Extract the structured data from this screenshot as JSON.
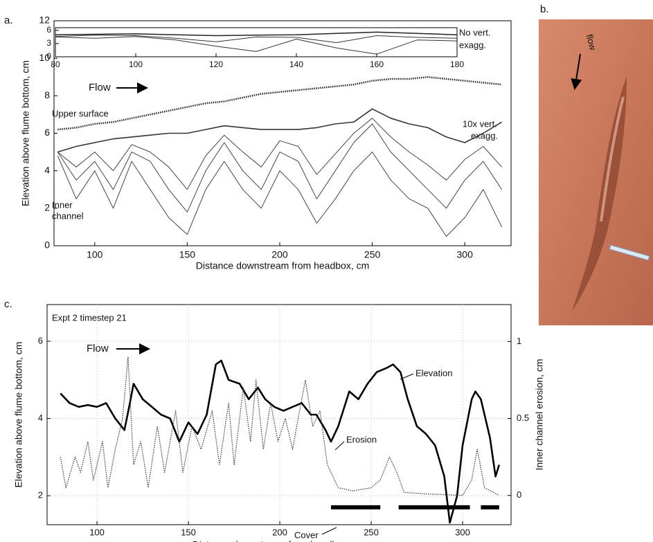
{
  "panel_labels": {
    "a": "a.",
    "b": "b.",
    "c": "c."
  },
  "photo": {
    "label": "flow"
  },
  "chart_data": [
    {
      "type": "line",
      "xlabel": "Distance downstream from headbox, cm",
      "ylabel": "Elevation above flume bottom, cm",
      "xlim": [
        78,
        325
      ],
      "ylim": [
        0,
        12
      ],
      "xticks": [
        100,
        150,
        200,
        250,
        300
      ],
      "yticks": [
        0,
        2,
        4,
        6,
        8,
        10,
        12
      ],
      "grid": false,
      "annotations": {
        "flow": "Flow",
        "upper": "Upper surface",
        "exagg_1": "10x vert.",
        "exagg_2": "exagg.",
        "inner_1": "Inner",
        "inner_2": "channel"
      },
      "x": [
        80,
        90,
        100,
        110,
        120,
        130,
        140,
        150,
        160,
        170,
        180,
        190,
        200,
        210,
        220,
        230,
        240,
        250,
        260,
        270,
        280,
        290,
        300,
        310,
        320
      ],
      "series": [
        {
          "name": "Upper surface",
          "color": "#222",
          "style": "dotted",
          "linewidth": 2.5,
          "values": [
            6.2,
            6.3,
            6.5,
            6.6,
            6.8,
            7.0,
            7.2,
            7.4,
            7.6,
            7.7,
            7.9,
            8.1,
            8.2,
            8.3,
            8.4,
            8.5,
            8.6,
            8.8,
            8.9,
            8.9,
            9.0,
            8.9,
            8.8,
            8.7,
            8.6
          ]
        },
        {
          "color": "#333",
          "style": "solid",
          "linewidth": 1.6,
          "values": [
            5.0,
            5.3,
            5.5,
            5.7,
            5.8,
            5.9,
            6.0,
            6.0,
            6.2,
            6.4,
            6.3,
            6.2,
            6.2,
            6.2,
            6.3,
            6.5,
            6.6,
            7.3,
            6.8,
            6.5,
            6.3,
            5.8,
            5.5,
            6.0,
            6.6
          ]
        },
        {
          "color": "#444",
          "style": "solid",
          "linewidth": 1,
          "values": [
            5.0,
            4.2,
            5.0,
            4.0,
            5.4,
            5.0,
            4.2,
            3.0,
            4.8,
            5.9,
            5.0,
            4.2,
            5.6,
            5.3,
            3.8,
            4.9,
            6.0,
            6.8,
            5.8,
            5.0,
            4.3,
            3.5,
            4.6,
            5.3,
            4.2
          ]
        },
        {
          "color": "#444",
          "style": "solid",
          "linewidth": 1,
          "values": [
            5.0,
            3.5,
            4.5,
            3.0,
            5.0,
            4.5,
            3.0,
            1.8,
            4.0,
            5.5,
            4.0,
            3.0,
            5.0,
            4.5,
            2.5,
            4.0,
            5.5,
            6.5,
            5.0,
            4.0,
            3.0,
            2.0,
            3.5,
            4.5,
            3.0
          ]
        },
        {
          "color": "#444",
          "style": "solid",
          "linewidth": 1,
          "values": [
            4.8,
            2.5,
            4.0,
            2.0,
            4.5,
            3.0,
            1.5,
            0.6,
            3.0,
            4.5,
            3.0,
            2.0,
            4.0,
            3.0,
            1.2,
            2.5,
            4.0,
            5.0,
            3.5,
            2.5,
            2.0,
            0.5,
            1.5,
            3.0,
            1.0
          ]
        }
      ]
    },
    {
      "type": "line",
      "xlim": [
        80,
        180
      ],
      "ylim": [
        0,
        6.6
      ],
      "xticks": [
        80,
        100,
        120,
        140,
        160,
        180
      ],
      "yticks": [
        0,
        3,
        6
      ],
      "grid": false,
      "annotations": {
        "note_1": "No vert.",
        "note_2": "exagg."
      },
      "x": [
        80,
        90,
        100,
        110,
        120,
        130,
        140,
        150,
        160,
        170,
        180
      ],
      "series": [
        {
          "color": "#222",
          "style": "solid",
          "linewidth": 1.5,
          "values": [
            5.0,
            5.1,
            5.2,
            5.0,
            4.8,
            4.9,
            5.0,
            5.3,
            5.6,
            5.3,
            5.0
          ]
        },
        {
          "color": "#333",
          "style": "solid",
          "linewidth": 1,
          "values": [
            4.6,
            4.9,
            4.8,
            4.2,
            3.4,
            4.5,
            4.4,
            3.2,
            4.8,
            4.4,
            4.2
          ]
        },
        {
          "color": "#333",
          "style": "solid",
          "linewidth": 1,
          "values": [
            4.5,
            4.2,
            4.6,
            3.8,
            2.4,
            1.2,
            4.0,
            2.0,
            0.6,
            3.8,
            3.6
          ]
        }
      ]
    },
    {
      "type": "line",
      "subtitle": "Expt 2 timestep 21",
      "xlabel": "Distance downstream from headbox, cm",
      "ylabel": "Elevation above flume bottom, cm",
      "y2label": "Inner channel erosion, cm",
      "xlim": [
        72.7,
        326.5
      ],
      "ylim": [
        1.25,
        6.95
      ],
      "y2lim": [
        -0.19,
        1.24
      ],
      "xticks": [
        100,
        150,
        200,
        250,
        300
      ],
      "yticks": [
        2,
        4,
        6
      ],
      "y2ticks": [
        0,
        0.5,
        1
      ],
      "grid": true,
      "annotations": {
        "flow": "Flow",
        "elevation": "Elevation",
        "erosion": "Erosion"
      },
      "cover": {
        "label": "Cover",
        "level": 1.7,
        "segments": [
          [
            228,
            255
          ],
          [
            265,
            304
          ],
          [
            310,
            320
          ]
        ]
      },
      "series": [
        {
          "name": "Elevation",
          "color": "#000",
          "style": "solid",
          "linewidth": 2.6,
          "x": [
            80,
            85,
            90,
            95,
            100,
            105,
            110,
            115,
            118,
            120,
            125,
            130,
            135,
            140,
            145,
            150,
            155,
            160,
            165,
            168,
            172,
            178,
            183,
            188,
            192,
            197,
            202,
            207,
            212,
            217,
            220,
            225,
            228,
            232,
            238,
            243,
            248,
            253,
            258,
            262,
            266,
            270,
            275,
            280,
            285,
            290,
            293,
            297,
            300,
            305,
            307,
            310,
            315,
            318,
            320
          ],
          "values": [
            4.65,
            4.4,
            4.3,
            4.35,
            4.3,
            4.4,
            4.0,
            3.7,
            4.4,
            4.9,
            4.5,
            4.3,
            4.1,
            4.0,
            3.4,
            3.9,
            3.6,
            4.1,
            5.4,
            5.5,
            5.0,
            4.9,
            4.5,
            4.8,
            4.5,
            4.3,
            4.2,
            4.3,
            4.4,
            4.1,
            4.1,
            3.7,
            3.4,
            3.8,
            4.7,
            4.5,
            4.9,
            5.2,
            5.3,
            5.4,
            5.2,
            4.5,
            3.8,
            3.6,
            3.3,
            2.5,
            1.3,
            2.0,
            3.3,
            4.5,
            4.7,
            4.5,
            3.5,
            2.5,
            2.8
          ]
        },
        {
          "name": "Erosion",
          "color": "#333",
          "style": "dotted",
          "linewidth": 1.2,
          "axis": "y2",
          "x": [
            80,
            83,
            88,
            91,
            95,
            98,
            103,
            106,
            110,
            114,
            117,
            120,
            124,
            128,
            133,
            137,
            143,
            147,
            152,
            157,
            163,
            167,
            172,
            175,
            180,
            184,
            187,
            191,
            195,
            199,
            203,
            207,
            210,
            214,
            218,
            222,
            226,
            232,
            240,
            250,
            255,
            260,
            264,
            268,
            280,
            300,
            305,
            308,
            312,
            320
          ],
          "values": [
            0.25,
            0.05,
            0.25,
            0.15,
            0.35,
            0.1,
            0.35,
            0.05,
            0.3,
            0.5,
            0.9,
            0.2,
            0.35,
            0.05,
            0.45,
            0.15,
            0.55,
            0.15,
            0.45,
            0.3,
            0.55,
            0.2,
            0.6,
            0.2,
            0.7,
            0.35,
            0.75,
            0.3,
            0.6,
            0.35,
            0.5,
            0.3,
            0.5,
            0.75,
            0.45,
            0.55,
            0.2,
            0.05,
            0.03,
            0.05,
            0.1,
            0.25,
            0.15,
            0.02,
            0.01,
            0.0,
            0.1,
            0.3,
            0.05,
            0.0
          ]
        }
      ]
    }
  ]
}
